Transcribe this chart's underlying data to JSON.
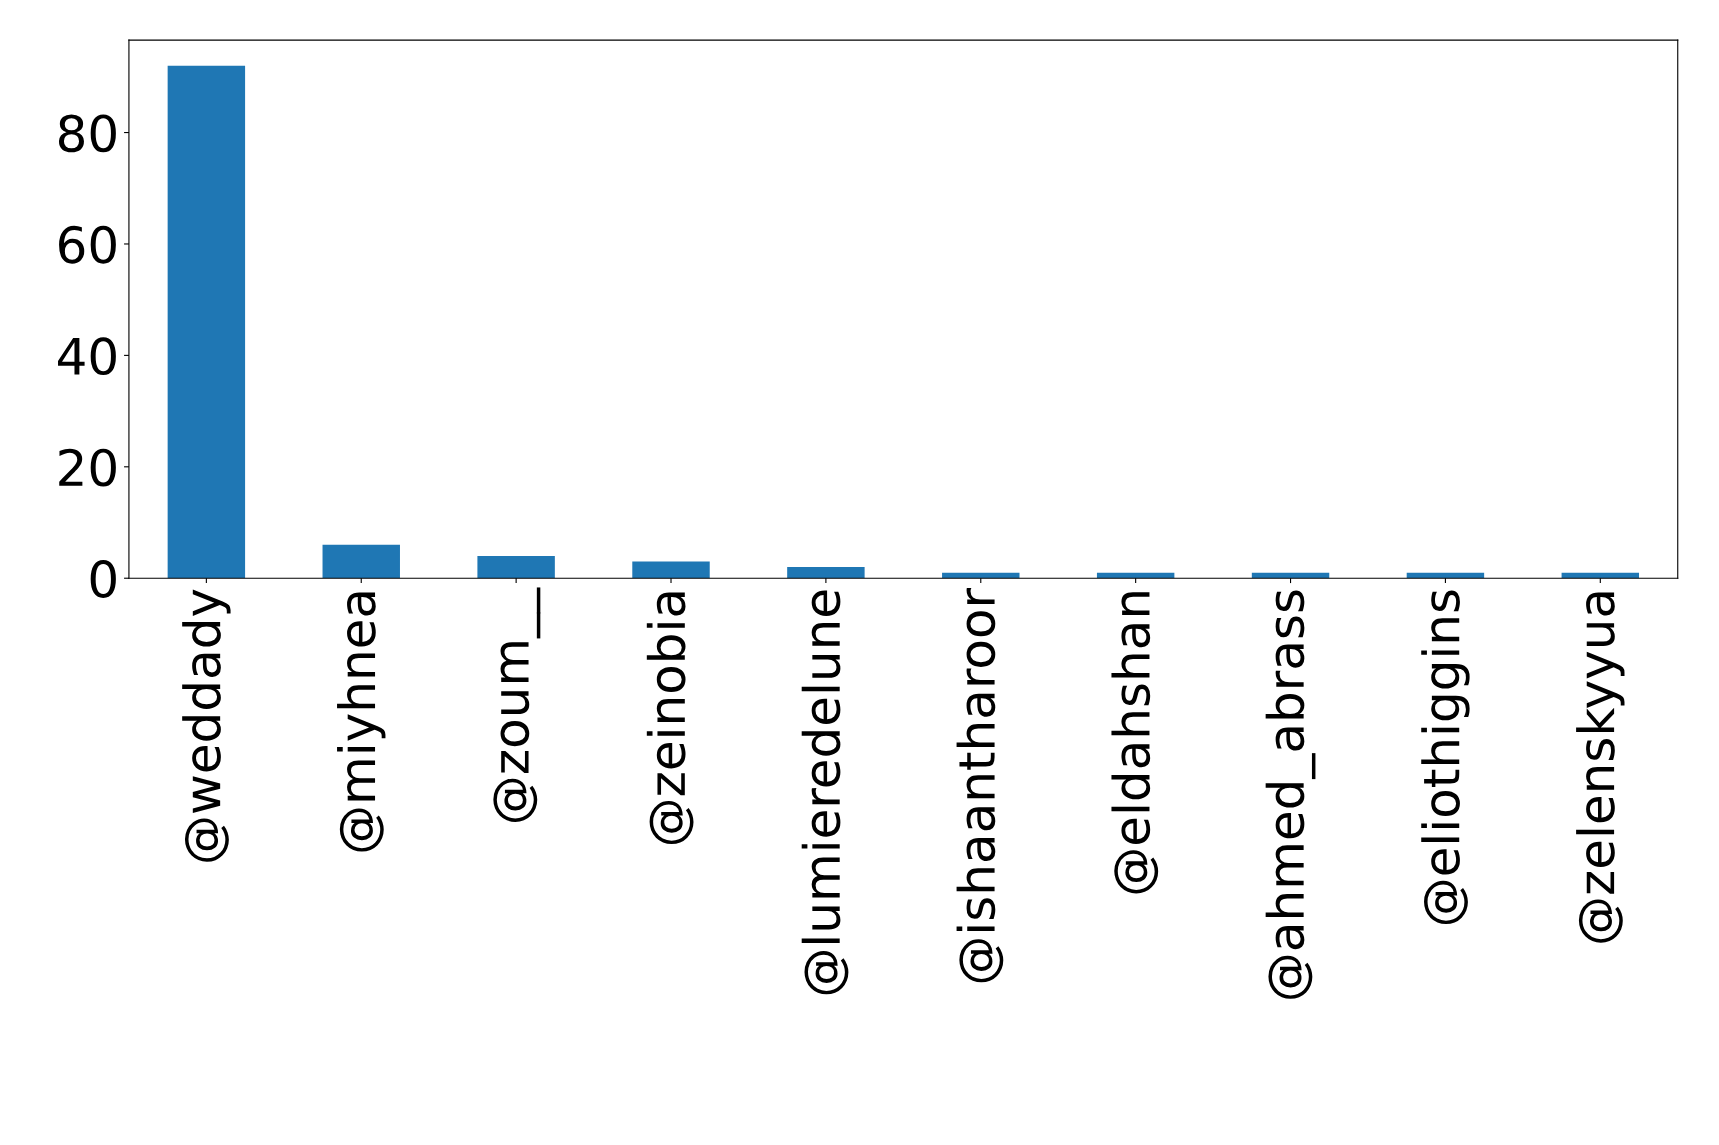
{
  "chart_data": {
    "type": "bar",
    "categories": [
      "@weddady",
      "@miyhnea",
      "@zoum__",
      "@zeinobia",
      "@lumieredelune",
      "@ishaantharoor",
      "@eldahshan",
      "@ahmed_abrass",
      "@eliothiggins",
      "@zelenskyyua"
    ],
    "values": [
      92,
      6,
      4,
      3,
      2,
      1,
      1,
      1,
      1,
      1
    ],
    "color": "#1f77b4",
    "ylim": [
      0,
      96.6
    ],
    "yticks": [
      0,
      20,
      40,
      60,
      80
    ],
    "grid": false,
    "legend": false
  }
}
